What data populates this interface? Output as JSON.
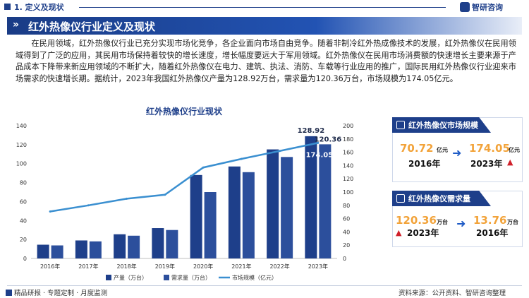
{
  "header": {
    "section_title": "1. 定义及现状",
    "logo_text": "智研咨询"
  },
  "banner": {
    "title": "红外热像仪行业定义及现状"
  },
  "paragraph": "在民用领域，红外热像仪行业已充分实现市场化竞争，各企业面向市场自由竞争。随着非制冷红外热成像技术的发展，红外热像仪在民用领域得到了广泛的应用，其民用市场保持着较快的增长速度，增长幅度要远大于军用领域。红外热像仪在民用市场消费额的快速增长主要来源于产品成本下降带来新应用领域的不断扩大，随着红外热像仪在电力、建筑、执法、消防、车载等行业应用的推广，国际民用红外热像仪行业迎来市场需求的快速增长期。据统计，2023年我国红外热像仪产量为128.92万台，需求量为120.36万台，市场规模为174.05亿元。",
  "chart_data": {
    "type": "bar",
    "title": "红外热像仪行业现状",
    "categories": [
      "2016年",
      "2017年",
      "2018年",
      "2019年",
      "2020年",
      "2021年",
      "2022年",
      "2023年"
    ],
    "series": [
      {
        "name": "产量（万台）",
        "kind": "bar",
        "axis": "left",
        "color": "#1e3f8a",
        "values": [
          14.5,
          19.0,
          25.5,
          32.0,
          88.0,
          97.0,
          115.0,
          128.92
        ]
      },
      {
        "name": "需求量（万台）",
        "kind": "bar",
        "axis": "left",
        "color": "#2c4f9c",
        "values": [
          13.76,
          18.0,
          24.0,
          30.0,
          70.0,
          91.0,
          107.0,
          120.36
        ]
      },
      {
        "name": "市场规模（亿元）",
        "kind": "line",
        "axis": "right",
        "color": "#3a8fd0",
        "values": [
          70.72,
          80.0,
          90.0,
          96.0,
          137.0,
          150.0,
          162.0,
          174.05
        ]
      }
    ],
    "y_left": {
      "min": 0,
      "max": 140,
      "ticks": [
        0,
        20,
        40,
        60,
        80,
        100,
        120,
        140
      ]
    },
    "y_right": {
      "min": 0,
      "max": 200,
      "ticks": [
        0,
        20,
        40,
        60,
        80,
        100,
        120,
        140,
        160,
        180,
        200
      ]
    },
    "data_labels": [
      {
        "text": "128.92",
        "series": 0,
        "index": 7
      },
      {
        "text": "120.36",
        "series": 1,
        "index": 7
      },
      {
        "text": "174.05",
        "series": 2,
        "index": 7
      }
    ],
    "legend": {
      "position": "bottom"
    }
  },
  "card_market": {
    "title": "红外热像仪市场规模",
    "left_value": "70.72",
    "left_unit": "亿元",
    "left_year": "2016年",
    "right_value": "174.05",
    "right_unit": "亿元",
    "right_year": "2023年"
  },
  "card_demand": {
    "title": "红外热像仪需求量",
    "left_value": "120.36",
    "left_unit": "万台",
    "left_year": "2023年",
    "right_value": "13.76",
    "right_unit": "万台",
    "right_year": "2016年"
  },
  "footer": {
    "left_text": "精品研报 · 专题定制 · 月度监测",
    "right_text": "资料来源：公开资料、智研咨询整理"
  }
}
